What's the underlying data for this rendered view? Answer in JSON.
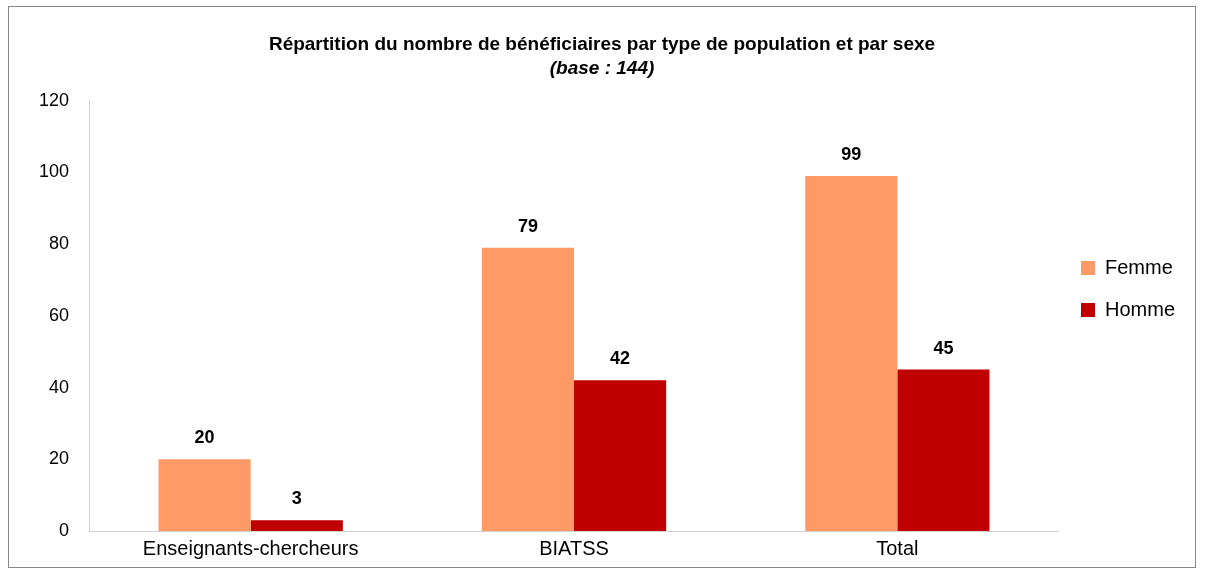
{
  "chart_data": {
    "type": "bar",
    "title": "Répartition du nombre de bénéficiaires par type de population et par sexe",
    "subtitle": "(base : 144)",
    "categories": [
      "Enseignants-chercheurs",
      "BIATSS",
      "Total"
    ],
    "series": [
      {
        "name": "Femme",
        "color": "#ff9966",
        "values": [
          20,
          79,
          99
        ]
      },
      {
        "name": "Homme",
        "color": "#c00000",
        "values": [
          3,
          42,
          45
        ]
      }
    ],
    "ylim": [
      0,
      120
    ],
    "yticks": [
      0,
      20,
      40,
      60,
      80,
      100,
      120
    ],
    "grid": false,
    "legend": "right",
    "data_labels": true
  }
}
